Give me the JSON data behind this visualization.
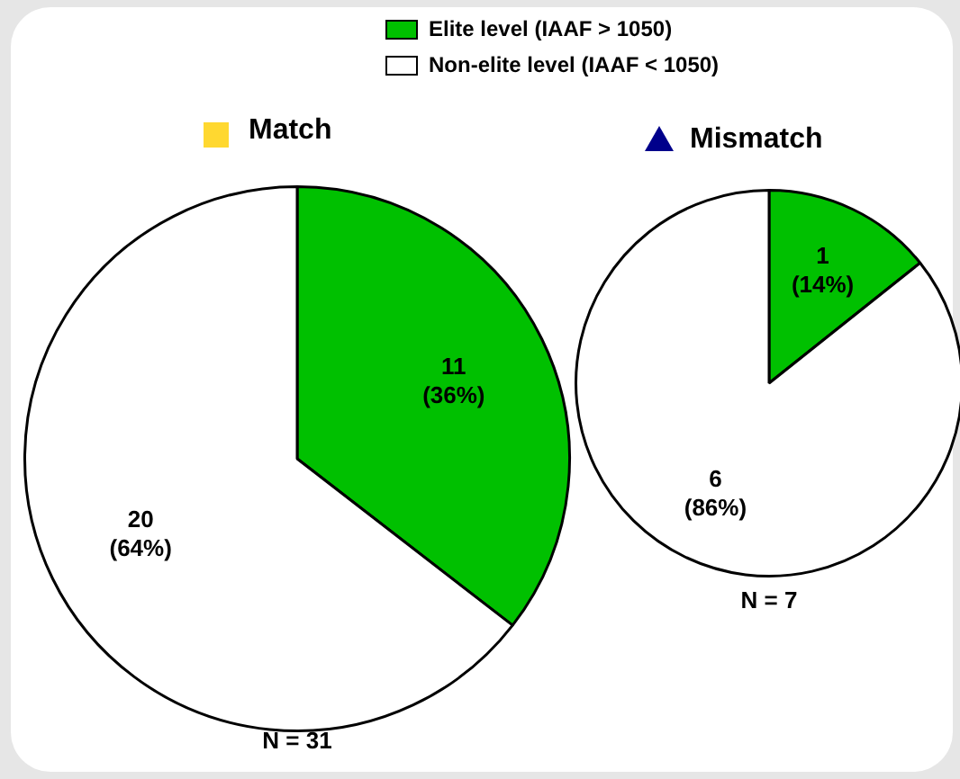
{
  "chart_data": [
    {
      "type": "pie",
      "title": "Match",
      "categories": [
        "Elite level (IAAF > 1050)",
        "Non-elite level (IAAF < 1050)"
      ],
      "values": [
        11,
        20
      ],
      "colors": [
        "#00c000",
        "#ffffff"
      ],
      "value_labels": [
        "11\n(36%)",
        "20\n(64%)"
      ],
      "legend": "top",
      "annotations": [
        "N = 31"
      ]
    },
    {
      "type": "pie",
      "title": "Mismatch",
      "categories": [
        null,
        null
      ],
      "values": [
        1,
        6
      ],
      "colors": [
        "#00c000",
        "#ffffff"
      ],
      "value_labels": [
        "1\n(14%)",
        "6\n(86%)"
      ],
      "annotations": [
        "N = 7"
      ]
    }
  ]
}
